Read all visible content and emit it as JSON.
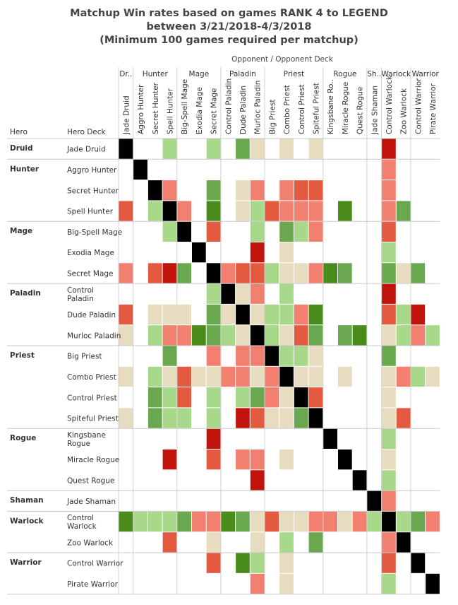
{
  "title_lines": [
    "Matchup Win rates based on games RANK 4 to LEGEND",
    "between 3/21/2018-4/3/2018",
    "(Minimum 100 games required per matchup)"
  ],
  "opponent_header": "Opponent  /  Opponent Deck",
  "colors": {
    "strong_win": "#4a8c1c",
    "win": "#6aa84f",
    "slight_win": "#a8d88a",
    "even": "#e8dcc0",
    "slight_loss": "#f6a19a",
    "loss": "#f28070",
    "big_loss": "#e45a40",
    "strong_loss": "#c0140c",
    "mirror": "#000000",
    "no_data": "#ffffff"
  },
  "chart_data": {
    "type": "heatmap",
    "row_header_hero": "Hero",
    "row_header_deck": "Hero Deck",
    "legend": "none",
    "value_scale": "-4 = strong loss (dark red), -3 loss, -2, -1 slight loss, 0 even (beige), 1 slight win (light green), 2 win, 3 strong win (dark green), 9 = mirror (black), null = fewer than 100 games",
    "column_groups": [
      {
        "label": "Dr..",
        "span": 1
      },
      {
        "label": "Hunter",
        "span": 3
      },
      {
        "label": "Mage",
        "span": 3
      },
      {
        "label": "Paladin",
        "span": 3
      },
      {
        "label": "Priest",
        "span": 4
      },
      {
        "label": "Rogue",
        "span": 3
      },
      {
        "label": "Sh..",
        "span": 1
      },
      {
        "label": "Warlock",
        "span": 2
      },
      {
        "label": "Warrior",
        "span": 2
      }
    ],
    "columns": [
      "Jade Druid",
      "Aggro Hunter",
      "Secret Hunter",
      "Spell Hunter",
      "Big-Spell Mage",
      "Exodia Mage",
      "Secret Mage",
      "Control Paladin",
      "Dude Paladin",
      "Murloc Paladin",
      "Big Priest",
      "Combo Priest",
      "Control Priest",
      "Spiteful Priest",
      "Kingsbane Ro..",
      "Miracle Rogue",
      "Quest Rogue",
      "Jade Shaman",
      "Control Warlock",
      "Zoo Warlock",
      "Control Warrior",
      "Pirate Warrior"
    ],
    "row_groups": [
      {
        "hero": "Druid",
        "decks": [
          [
            "Jade Druid"
          ]
        ]
      },
      {
        "hero": "Hunter",
        "decks": [
          [
            "Aggro Hunter"
          ],
          [
            "Secret Hunter"
          ],
          [
            "Spell Hunter"
          ]
        ]
      },
      {
        "hero": "Mage",
        "decks": [
          [
            "Big-Spell Mage"
          ],
          [
            "Exodia Mage"
          ],
          [
            "Secret Mage"
          ]
        ]
      },
      {
        "hero": "Paladin",
        "decks": [
          [
            "Control",
            "Paladin"
          ],
          [
            "Dude Paladin"
          ],
          [
            "Murloc Paladin"
          ]
        ]
      },
      {
        "hero": "Priest",
        "decks": [
          [
            "Big Priest"
          ],
          [
            "Combo Priest"
          ],
          [
            "Control Priest"
          ],
          [
            "Spiteful Priest"
          ]
        ]
      },
      {
        "hero": "Rogue",
        "decks": [
          [
            "Kingsbane",
            "Rogue"
          ],
          [
            "Miracle Rogue"
          ],
          [
            "Quest Rogue"
          ]
        ]
      },
      {
        "hero": "Shaman",
        "decks": [
          [
            "Jade Shaman"
          ]
        ]
      },
      {
        "hero": "Warlock",
        "decks": [
          [
            "Control",
            "Warlock"
          ],
          [
            "Zoo Warlock"
          ]
        ]
      },
      {
        "hero": "Warrior",
        "decks": [
          [
            "Control Warrior"
          ],
          [
            "Pirate Warrior"
          ]
        ]
      }
    ],
    "values": [
      [
        9,
        null,
        null,
        1,
        null,
        null,
        1,
        null,
        2,
        0,
        null,
        0,
        null,
        0,
        null,
        null,
        null,
        null,
        -4,
        null,
        null,
        null
      ],
      [
        null,
        9,
        null,
        null,
        null,
        null,
        null,
        null,
        null,
        null,
        null,
        null,
        null,
        null,
        null,
        null,
        null,
        null,
        -2,
        null,
        null,
        null
      ],
      [
        null,
        null,
        9,
        -2,
        null,
        null,
        2,
        null,
        0,
        -2,
        null,
        -2,
        -3,
        -3,
        null,
        null,
        null,
        null,
        -2,
        null,
        null,
        null
      ],
      [
        -3,
        null,
        1,
        9,
        -2,
        null,
        3,
        null,
        0,
        1,
        -3,
        -2,
        -2,
        -2,
        null,
        3,
        null,
        null,
        -2,
        2,
        null,
        null
      ],
      [
        null,
        null,
        null,
        1,
        9,
        null,
        -3,
        null,
        null,
        1,
        null,
        2,
        1,
        -2,
        null,
        null,
        null,
        null,
        -3,
        null,
        null,
        null
      ],
      [
        null,
        null,
        null,
        null,
        null,
        9,
        null,
        null,
        null,
        -4,
        null,
        0,
        null,
        null,
        null,
        null,
        null,
        null,
        1,
        null,
        null,
        null
      ],
      [
        -2,
        null,
        -3,
        -4,
        2,
        null,
        9,
        -2,
        -3,
        -3,
        1,
        0,
        0,
        -2,
        3,
        2,
        null,
        null,
        2,
        0,
        2,
        null
      ],
      [
        null,
        null,
        null,
        null,
        null,
        null,
        1,
        9,
        0,
        -2,
        null,
        1,
        null,
        null,
        null,
        null,
        null,
        null,
        -4,
        null,
        null,
        null
      ],
      [
        -3,
        null,
        0,
        0,
        0,
        null,
        2,
        0,
        9,
        0,
        1,
        1,
        -2,
        3,
        null,
        null,
        null,
        null,
        -3,
        1,
        -4,
        null
      ],
      [
        0,
        null,
        1,
        -2,
        -2,
        3,
        2,
        1,
        0,
        9,
        1,
        0,
        -3,
        2,
        null,
        2,
        3,
        null,
        0,
        1,
        -2,
        1
      ],
      [
        null,
        null,
        null,
        2,
        null,
        null,
        -2,
        null,
        -2,
        -2,
        9,
        1,
        1,
        0,
        null,
        null,
        null,
        null,
        2,
        null,
        null,
        null
      ],
      [
        0,
        null,
        1,
        0,
        -3,
        0,
        0,
        -2,
        -2,
        0,
        -2,
        9,
        0,
        0,
        null,
        0,
        null,
        null,
        0,
        -2,
        1,
        0
      ],
      [
        null,
        null,
        2,
        1,
        -3,
        null,
        1,
        null,
        1,
        2,
        -2,
        0,
        9,
        -3,
        null,
        null,
        null,
        null,
        0,
        null,
        null,
        null
      ],
      [
        0,
        null,
        2,
        1,
        1,
        null,
        1,
        null,
        -4,
        -3,
        0,
        0,
        2,
        9,
        null,
        null,
        null,
        null,
        0,
        -3,
        null,
        null
      ],
      [
        null,
        null,
        null,
        null,
        null,
        null,
        -4,
        null,
        null,
        null,
        null,
        null,
        null,
        null,
        9,
        null,
        null,
        null,
        1,
        null,
        null,
        null
      ],
      [
        null,
        null,
        null,
        -4,
        null,
        null,
        -3,
        null,
        -2,
        -2,
        null,
        0,
        null,
        null,
        null,
        9,
        null,
        null,
        0,
        null,
        null,
        null
      ],
      [
        null,
        null,
        null,
        null,
        null,
        null,
        null,
        null,
        null,
        -4,
        null,
        null,
        null,
        null,
        null,
        null,
        9,
        null,
        1,
        null,
        null,
        null
      ],
      [
        null,
        null,
        null,
        null,
        null,
        null,
        null,
        null,
        null,
        null,
        null,
        null,
        null,
        null,
        null,
        null,
        null,
        9,
        -2,
        null,
        null,
        null
      ],
      [
        3,
        1,
        1,
        1,
        2,
        -2,
        -2,
        3,
        2,
        0,
        -3,
        0,
        0,
        -2,
        -2,
        0,
        -2,
        1,
        9,
        1,
        2,
        -2
      ],
      [
        null,
        null,
        null,
        -3,
        null,
        null,
        0,
        null,
        null,
        0,
        null,
        1,
        null,
        2,
        null,
        null,
        null,
        null,
        -2,
        9,
        null,
        null
      ],
      [
        null,
        null,
        null,
        null,
        null,
        null,
        -3,
        null,
        3,
        1,
        null,
        0,
        null,
        null,
        null,
        null,
        null,
        null,
        -3,
        null,
        9,
        null
      ],
      [
        null,
        null,
        null,
        null,
        null,
        null,
        null,
        null,
        null,
        -2,
        null,
        0,
        null,
        null,
        null,
        null,
        null,
        null,
        1,
        null,
        null,
        9
      ]
    ]
  }
}
